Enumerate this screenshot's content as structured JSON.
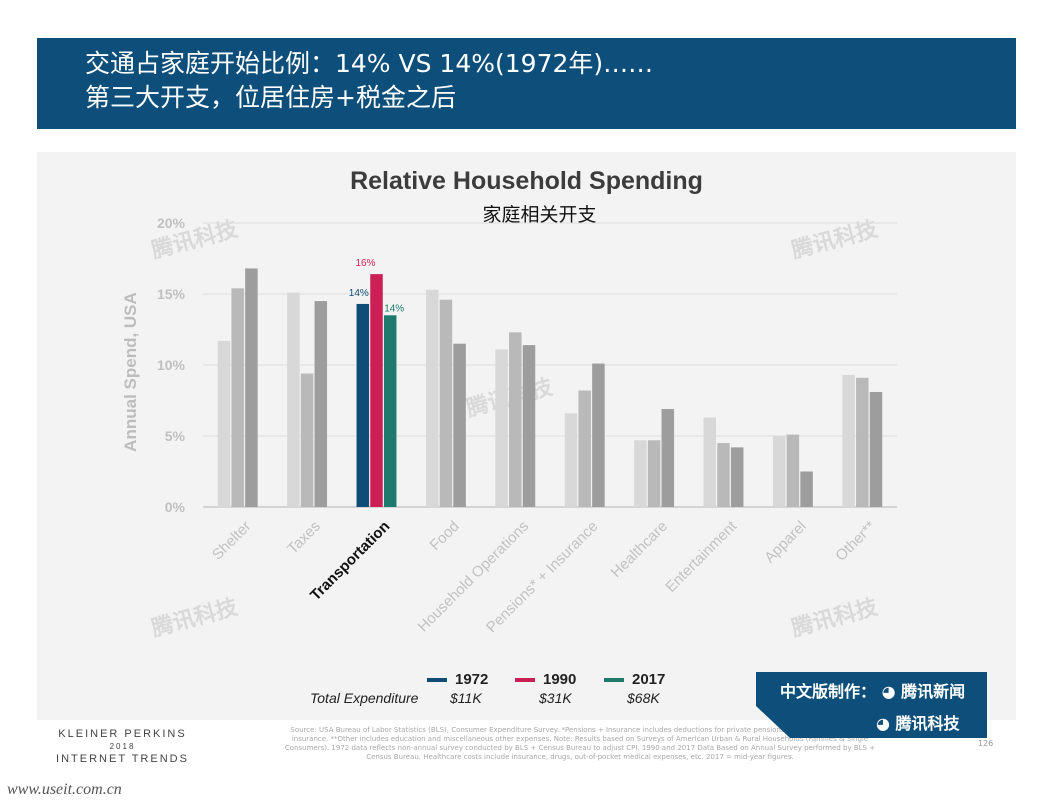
{
  "header": {
    "line1": "交通占家庭开始比例：14% VS 14%(1972年)……",
    "line2": "第三大开支，位居住房+税金之后"
  },
  "chart_data": {
    "type": "bar",
    "title": "Relative Household Spending",
    "subtitle": "家庭相关开支",
    "ylabel": "Annual Spend, USA",
    "ylim": [
      0,
      20
    ],
    "yticks": [
      "0%",
      "5%",
      "10%",
      "15%",
      "20%"
    ],
    "categories": [
      "Shelter",
      "Taxes",
      "Transportation",
      "Food",
      "Household Operations",
      "Pensions* + Insurance",
      "Healthcare",
      "Entertainment",
      "Apparel",
      "Other**"
    ],
    "highlight_category": "Transportation",
    "series": [
      {
        "name": "1972",
        "values": [
          11.7,
          15.1,
          14.3,
          15.3,
          11.1,
          6.6,
          4.7,
          6.3,
          5.0,
          9.3
        ]
      },
      {
        "name": "1990",
        "values": [
          15.4,
          9.4,
          16.4,
          14.6,
          12.3,
          8.2,
          4.7,
          4.5,
          5.1,
          9.1
        ]
      },
      {
        "name": "2017",
        "values": [
          16.8,
          14.5,
          13.5,
          11.5,
          11.4,
          10.1,
          6.9,
          4.2,
          2.5,
          8.1
        ]
      }
    ],
    "data_labels": {
      "1972": "14%",
      "1990": "16%",
      "2017": "14%"
    },
    "colors": {
      "grey_1972": "#d8d8d8",
      "grey_1990": "#b9b9b9",
      "grey_2017": "#9d9d9d",
      "highlight_1972": "#0f4c76",
      "highlight_1990": "#cc1f55",
      "highlight_2017": "#1d7a6c",
      "highlight_label": "#0f4c76"
    }
  },
  "legend": {
    "items": [
      {
        "label": "1972",
        "color": "#0f4c76",
        "expenditure": "$11K"
      },
      {
        "label": "1990",
        "color": "#cc1f55",
        "expenditure": "$31K"
      },
      {
        "label": "2017",
        "color": "#1d7a6c",
        "expenditure": "$68K"
      }
    ],
    "expenditure_label": "Total Expenditure"
  },
  "footer": {
    "brand_line1": "KLEINER PERKINS",
    "brand_line2": "2018",
    "brand_line3": "INTERNET TRENDS",
    "source": "Source: USA Bureau of Labor Statistics (BLS), Consumer Expenditure Survey. *Pensions + Insurance includes deductions for private pensions, social security, and life insurance. **Other includes education and miscellaneous other expenses. Note: Results based on Surveys of American Urban & Rural Households (Families & Single Consumers). 1972 data reflects non-annual survey conducted by BLS + Census Bureau to adjust CPI. 1990 and 2017 Data Based on Annual Survey performed by BLS + Census Bureau. Healthcare costs include insurance, drugs, out-of-pocket medical expenses, etc. 2017 = mid-year figures.",
    "page_number": "126",
    "site_watermark": "www.useit.com.cn"
  },
  "badge": {
    "line1": "中文版制作：",
    "brand1": "腾讯新闻",
    "brand2": "腾讯科技",
    "bg_color": "#0d4f7a"
  },
  "watermark_text": "腾讯科技"
}
